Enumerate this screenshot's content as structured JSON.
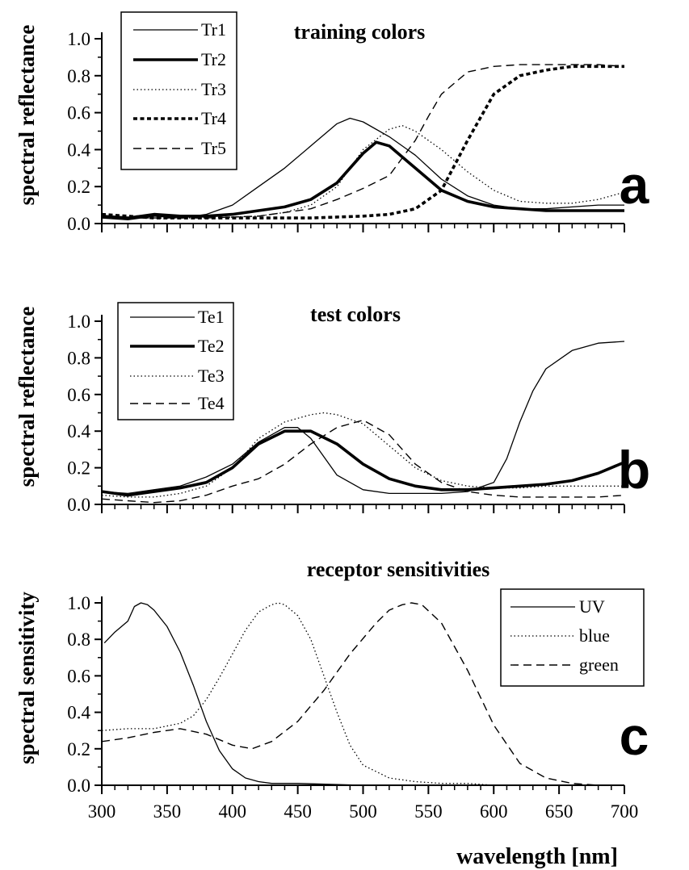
{
  "x_label": "wavelength [nm]",
  "chart_data": [
    {
      "type": "line",
      "panel_letter": "a",
      "title": "training colors",
      "ylabel": "spectral reflectance",
      "xlabel": "",
      "xlim": [
        300,
        700
      ],
      "ylim": [
        0,
        1.0
      ],
      "yticks": [
        "0.0",
        "0.2",
        "0.4",
        "0.6",
        "0.8",
        "1.0"
      ],
      "grid": false,
      "legend_position": "top-left",
      "series": [
        {
          "name": "Tr1",
          "style": "solid-thin",
          "x": [
            300,
            320,
            340,
            360,
            380,
            400,
            420,
            440,
            460,
            480,
            490,
            500,
            520,
            540,
            560,
            580,
            600,
            620,
            640,
            660,
            680,
            700
          ],
          "y": [
            0.03,
            0.02,
            0.04,
            0.03,
            0.05,
            0.1,
            0.2,
            0.3,
            0.42,
            0.54,
            0.57,
            0.55,
            0.47,
            0.37,
            0.24,
            0.15,
            0.1,
            0.08,
            0.08,
            0.09,
            0.1,
            0.1
          ]
        },
        {
          "name": "Tr2",
          "style": "solid-thick",
          "x": [
            300,
            320,
            340,
            360,
            380,
            400,
            420,
            440,
            460,
            480,
            500,
            510,
            520,
            540,
            560,
            580,
            600,
            620,
            640,
            660,
            680,
            700
          ],
          "y": [
            0.04,
            0.03,
            0.05,
            0.04,
            0.04,
            0.05,
            0.07,
            0.09,
            0.13,
            0.22,
            0.38,
            0.44,
            0.42,
            0.3,
            0.18,
            0.12,
            0.09,
            0.08,
            0.07,
            0.07,
            0.07,
            0.07
          ]
        },
        {
          "name": "Tr3",
          "style": "dotted",
          "x": [
            300,
            340,
            380,
            420,
            440,
            460,
            480,
            500,
            520,
            530,
            540,
            560,
            580,
            600,
            620,
            640,
            660,
            680,
            700
          ],
          "y": [
            0.03,
            0.03,
            0.03,
            0.04,
            0.06,
            0.1,
            0.2,
            0.4,
            0.51,
            0.53,
            0.5,
            0.4,
            0.28,
            0.18,
            0.12,
            0.11,
            0.11,
            0.13,
            0.17
          ]
        },
        {
          "name": "Tr4",
          "style": "dashed-thick",
          "x": [
            300,
            340,
            380,
            420,
            460,
            500,
            520,
            540,
            560,
            580,
            600,
            620,
            640,
            660,
            680,
            700
          ],
          "y": [
            0.05,
            0.03,
            0.03,
            0.03,
            0.03,
            0.04,
            0.05,
            0.08,
            0.18,
            0.45,
            0.7,
            0.8,
            0.83,
            0.85,
            0.85,
            0.85
          ]
        },
        {
          "name": "Tr5",
          "style": "dashed",
          "x": [
            300,
            340,
            380,
            420,
            460,
            480,
            500,
            520,
            540,
            550,
            560,
            580,
            600,
            620,
            640,
            660,
            680,
            700
          ],
          "y": [
            0.03,
            0.03,
            0.03,
            0.04,
            0.08,
            0.13,
            0.19,
            0.26,
            0.45,
            0.58,
            0.7,
            0.82,
            0.85,
            0.86,
            0.86,
            0.86,
            0.86,
            0.85
          ]
        }
      ]
    },
    {
      "type": "line",
      "panel_letter": "b",
      "title": "test colors",
      "ylabel": "spectral reflectance",
      "xlabel": "",
      "xlim": [
        300,
        700
      ],
      "ylim": [
        0,
        1.0
      ],
      "yticks": [
        "0.0",
        "0.2",
        "0.4",
        "0.6",
        "0.8",
        "1.0"
      ],
      "grid": false,
      "legend_position": "top-left",
      "series": [
        {
          "name": "Te1",
          "style": "solid-thin",
          "x": [
            300,
            320,
            340,
            360,
            380,
            400,
            420,
            440,
            450,
            460,
            480,
            500,
            520,
            540,
            560,
            580,
            600,
            610,
            620,
            630,
            640,
            660,
            680,
            700
          ],
          "y": [
            0.07,
            0.06,
            0.08,
            0.1,
            0.15,
            0.22,
            0.34,
            0.42,
            0.42,
            0.36,
            0.16,
            0.08,
            0.06,
            0.06,
            0.06,
            0.07,
            0.12,
            0.25,
            0.45,
            0.62,
            0.74,
            0.84,
            0.88,
            0.89
          ]
        },
        {
          "name": "Te2",
          "style": "solid-thick",
          "x": [
            300,
            320,
            340,
            360,
            380,
            400,
            420,
            440,
            460,
            480,
            500,
            520,
            540,
            560,
            580,
            600,
            620,
            640,
            660,
            680,
            700
          ],
          "y": [
            0.07,
            0.05,
            0.07,
            0.09,
            0.12,
            0.2,
            0.33,
            0.4,
            0.4,
            0.33,
            0.22,
            0.14,
            0.1,
            0.08,
            0.08,
            0.09,
            0.1,
            0.11,
            0.13,
            0.17,
            0.23
          ]
        },
        {
          "name": "Te3",
          "style": "dotted",
          "x": [
            300,
            320,
            340,
            360,
            380,
            400,
            420,
            440,
            460,
            470,
            480,
            500,
            520,
            540,
            560,
            580,
            600,
            620,
            640,
            660,
            680,
            700
          ],
          "y": [
            0.05,
            0.04,
            0.04,
            0.06,
            0.1,
            0.2,
            0.36,
            0.45,
            0.49,
            0.5,
            0.49,
            0.44,
            0.32,
            0.2,
            0.13,
            0.1,
            0.09,
            0.09,
            0.1,
            0.1,
            0.1,
            0.1
          ]
        },
        {
          "name": "Te4",
          "style": "dashed",
          "x": [
            300,
            320,
            340,
            360,
            380,
            400,
            420,
            440,
            460,
            480,
            500,
            520,
            540,
            560,
            580,
            600,
            620,
            640,
            660,
            680,
            700
          ],
          "y": [
            0.03,
            0.02,
            0.01,
            0.02,
            0.05,
            0.1,
            0.14,
            0.22,
            0.33,
            0.42,
            0.46,
            0.38,
            0.22,
            0.12,
            0.07,
            0.05,
            0.04,
            0.04,
            0.04,
            0.04,
            0.05
          ]
        }
      ]
    },
    {
      "type": "line",
      "panel_letter": "c",
      "title": "receptor sensitivities",
      "ylabel": "spectral sensitivity",
      "xlabel": "wavelength [nm]",
      "xlim": [
        300,
        700
      ],
      "ylim": [
        0,
        1.0
      ],
      "xticks": [
        "300",
        "350",
        "400",
        "450",
        "500",
        "550",
        "600",
        "650",
        "700"
      ],
      "yticks": [
        "0.0",
        "0.2",
        "0.4",
        "0.6",
        "0.8",
        "1.0"
      ],
      "grid": false,
      "legend_position": "top-right",
      "series": [
        {
          "name": "UV",
          "style": "solid-thin",
          "x": [
            302,
            310,
            320,
            325,
            330,
            335,
            340,
            350,
            360,
            370,
            380,
            390,
            400,
            410,
            420,
            430,
            450,
            500,
            600,
            700
          ],
          "y": [
            0.78,
            0.84,
            0.9,
            0.98,
            1.0,
            0.99,
            0.96,
            0.87,
            0.73,
            0.55,
            0.35,
            0.19,
            0.09,
            0.04,
            0.02,
            0.01,
            0.01,
            0.0,
            0.0,
            0.0
          ]
        },
        {
          "name": "blue",
          "style": "dotted",
          "x": [
            300,
            320,
            340,
            360,
            370,
            380,
            390,
            400,
            410,
            420,
            430,
            435,
            440,
            450,
            460,
            470,
            480,
            490,
            500,
            520,
            540,
            560,
            580,
            600,
            650,
            700
          ],
          "y": [
            0.3,
            0.31,
            0.31,
            0.34,
            0.38,
            0.47,
            0.59,
            0.72,
            0.85,
            0.95,
            0.99,
            1.0,
            0.99,
            0.93,
            0.8,
            0.6,
            0.4,
            0.22,
            0.11,
            0.04,
            0.02,
            0.01,
            0.01,
            0.0,
            0.0,
            0.0
          ]
        },
        {
          "name": "green",
          "style": "dashed",
          "x": [
            300,
            320,
            340,
            360,
            380,
            400,
            415,
            430,
            450,
            470,
            490,
            510,
            520,
            530,
            537,
            545,
            560,
            580,
            600,
            620,
            640,
            660,
            680,
            700
          ],
          "y": [
            0.24,
            0.26,
            0.29,
            0.31,
            0.28,
            0.22,
            0.2,
            0.24,
            0.35,
            0.52,
            0.72,
            0.89,
            0.96,
            0.99,
            1.0,
            0.99,
            0.89,
            0.63,
            0.33,
            0.12,
            0.04,
            0.01,
            0.0,
            0.0
          ]
        }
      ]
    }
  ]
}
